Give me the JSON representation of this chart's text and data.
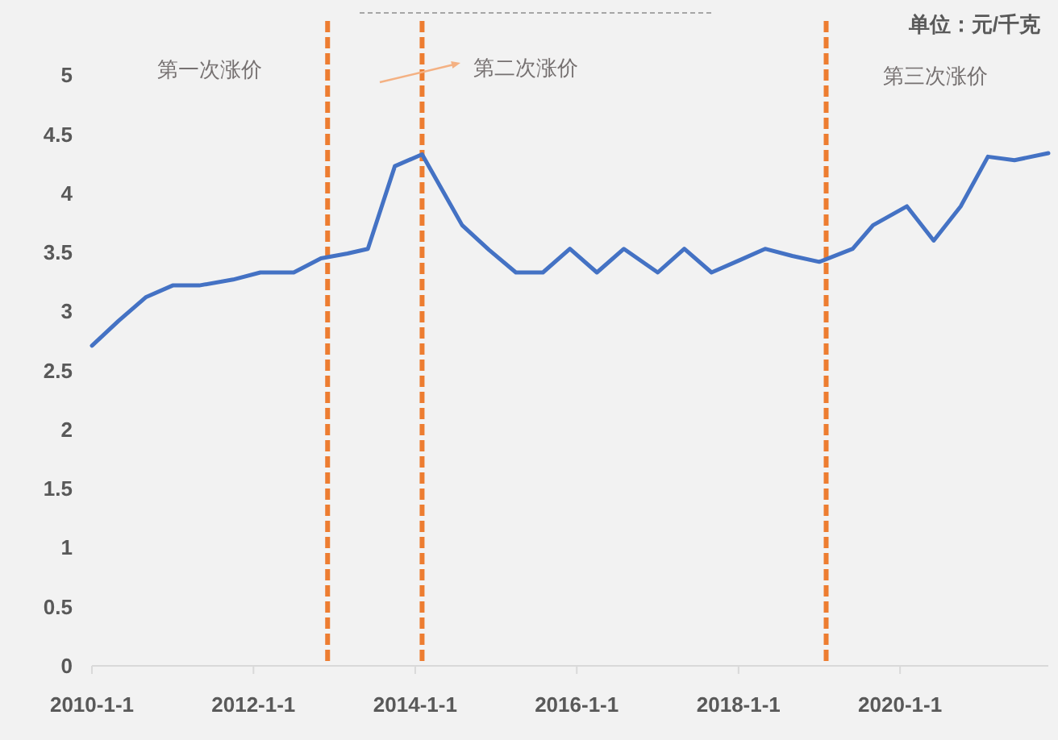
{
  "chart_data": {
    "type": "line",
    "ylabel": "单位：元/千克",
    "x": [
      "2010-01",
      "2010-05",
      "2010-09",
      "2011-01",
      "2011-05",
      "2011-10",
      "2012-02",
      "2012-07",
      "2012-11",
      "2013-03",
      "2013-06",
      "2013-10",
      "2014-02",
      "2014-08",
      "2014-12",
      "2015-04",
      "2015-08",
      "2015-12",
      "2016-04",
      "2016-08",
      "2017-01",
      "2017-05",
      "2017-09",
      "2018-01",
      "2018-05",
      "2018-09",
      "2019-01",
      "2019-06",
      "2019-09",
      "2020-02",
      "2020-06",
      "2020-10",
      "2021-02",
      "2021-06",
      "2021-11"
    ],
    "values": [
      2.71,
      2.92,
      3.12,
      3.22,
      3.22,
      3.27,
      3.33,
      3.33,
      3.45,
      3.49,
      3.53,
      4.23,
      4.33,
      3.73,
      3.52,
      3.33,
      3.33,
      3.53,
      3.33,
      3.53,
      3.33,
      3.53,
      3.33,
      3.43,
      3.53,
      3.47,
      3.42,
      3.53,
      3.73,
      3.89,
      3.6,
      3.89,
      4.31,
      4.28,
      4.34
    ],
    "color": "#4472c4",
    "xlim": [
      "2010-01-01",
      "2021-11-01"
    ],
    "xticks": [
      {
        "value": "2010-01-01",
        "label": "2010-1-1"
      },
      {
        "value": "2012-01-01",
        "label": "2012-1-1"
      },
      {
        "value": "2014-01-01",
        "label": "2014-1-1"
      },
      {
        "value": "2016-01-01",
        "label": "2016-1-1"
      },
      {
        "value": "2018-01-01",
        "label": "2018-1-1"
      },
      {
        "value": "2020-01-01",
        "label": "2020-1-1"
      }
    ],
    "ylim": [
      0,
      5.5
    ],
    "yticks": [
      0,
      0.5,
      1,
      1.5,
      2,
      2.5,
      3,
      3.5,
      4,
      4.5,
      5
    ],
    "ref_lines": [
      {
        "axis": "x",
        "value": "2012-12",
        "color": "#ed7d31",
        "line_style": "dashed"
      },
      {
        "axis": "x",
        "value": "2014-02",
        "color": "#ed7d31",
        "line_style": "dashed"
      },
      {
        "axis": "x",
        "value": "2019-02",
        "color": "#ed7d31",
        "line_style": "dashed"
      }
    ],
    "annotations": [
      "第一次涨价",
      "第二次涨价",
      "第三次涨价"
    ]
  }
}
